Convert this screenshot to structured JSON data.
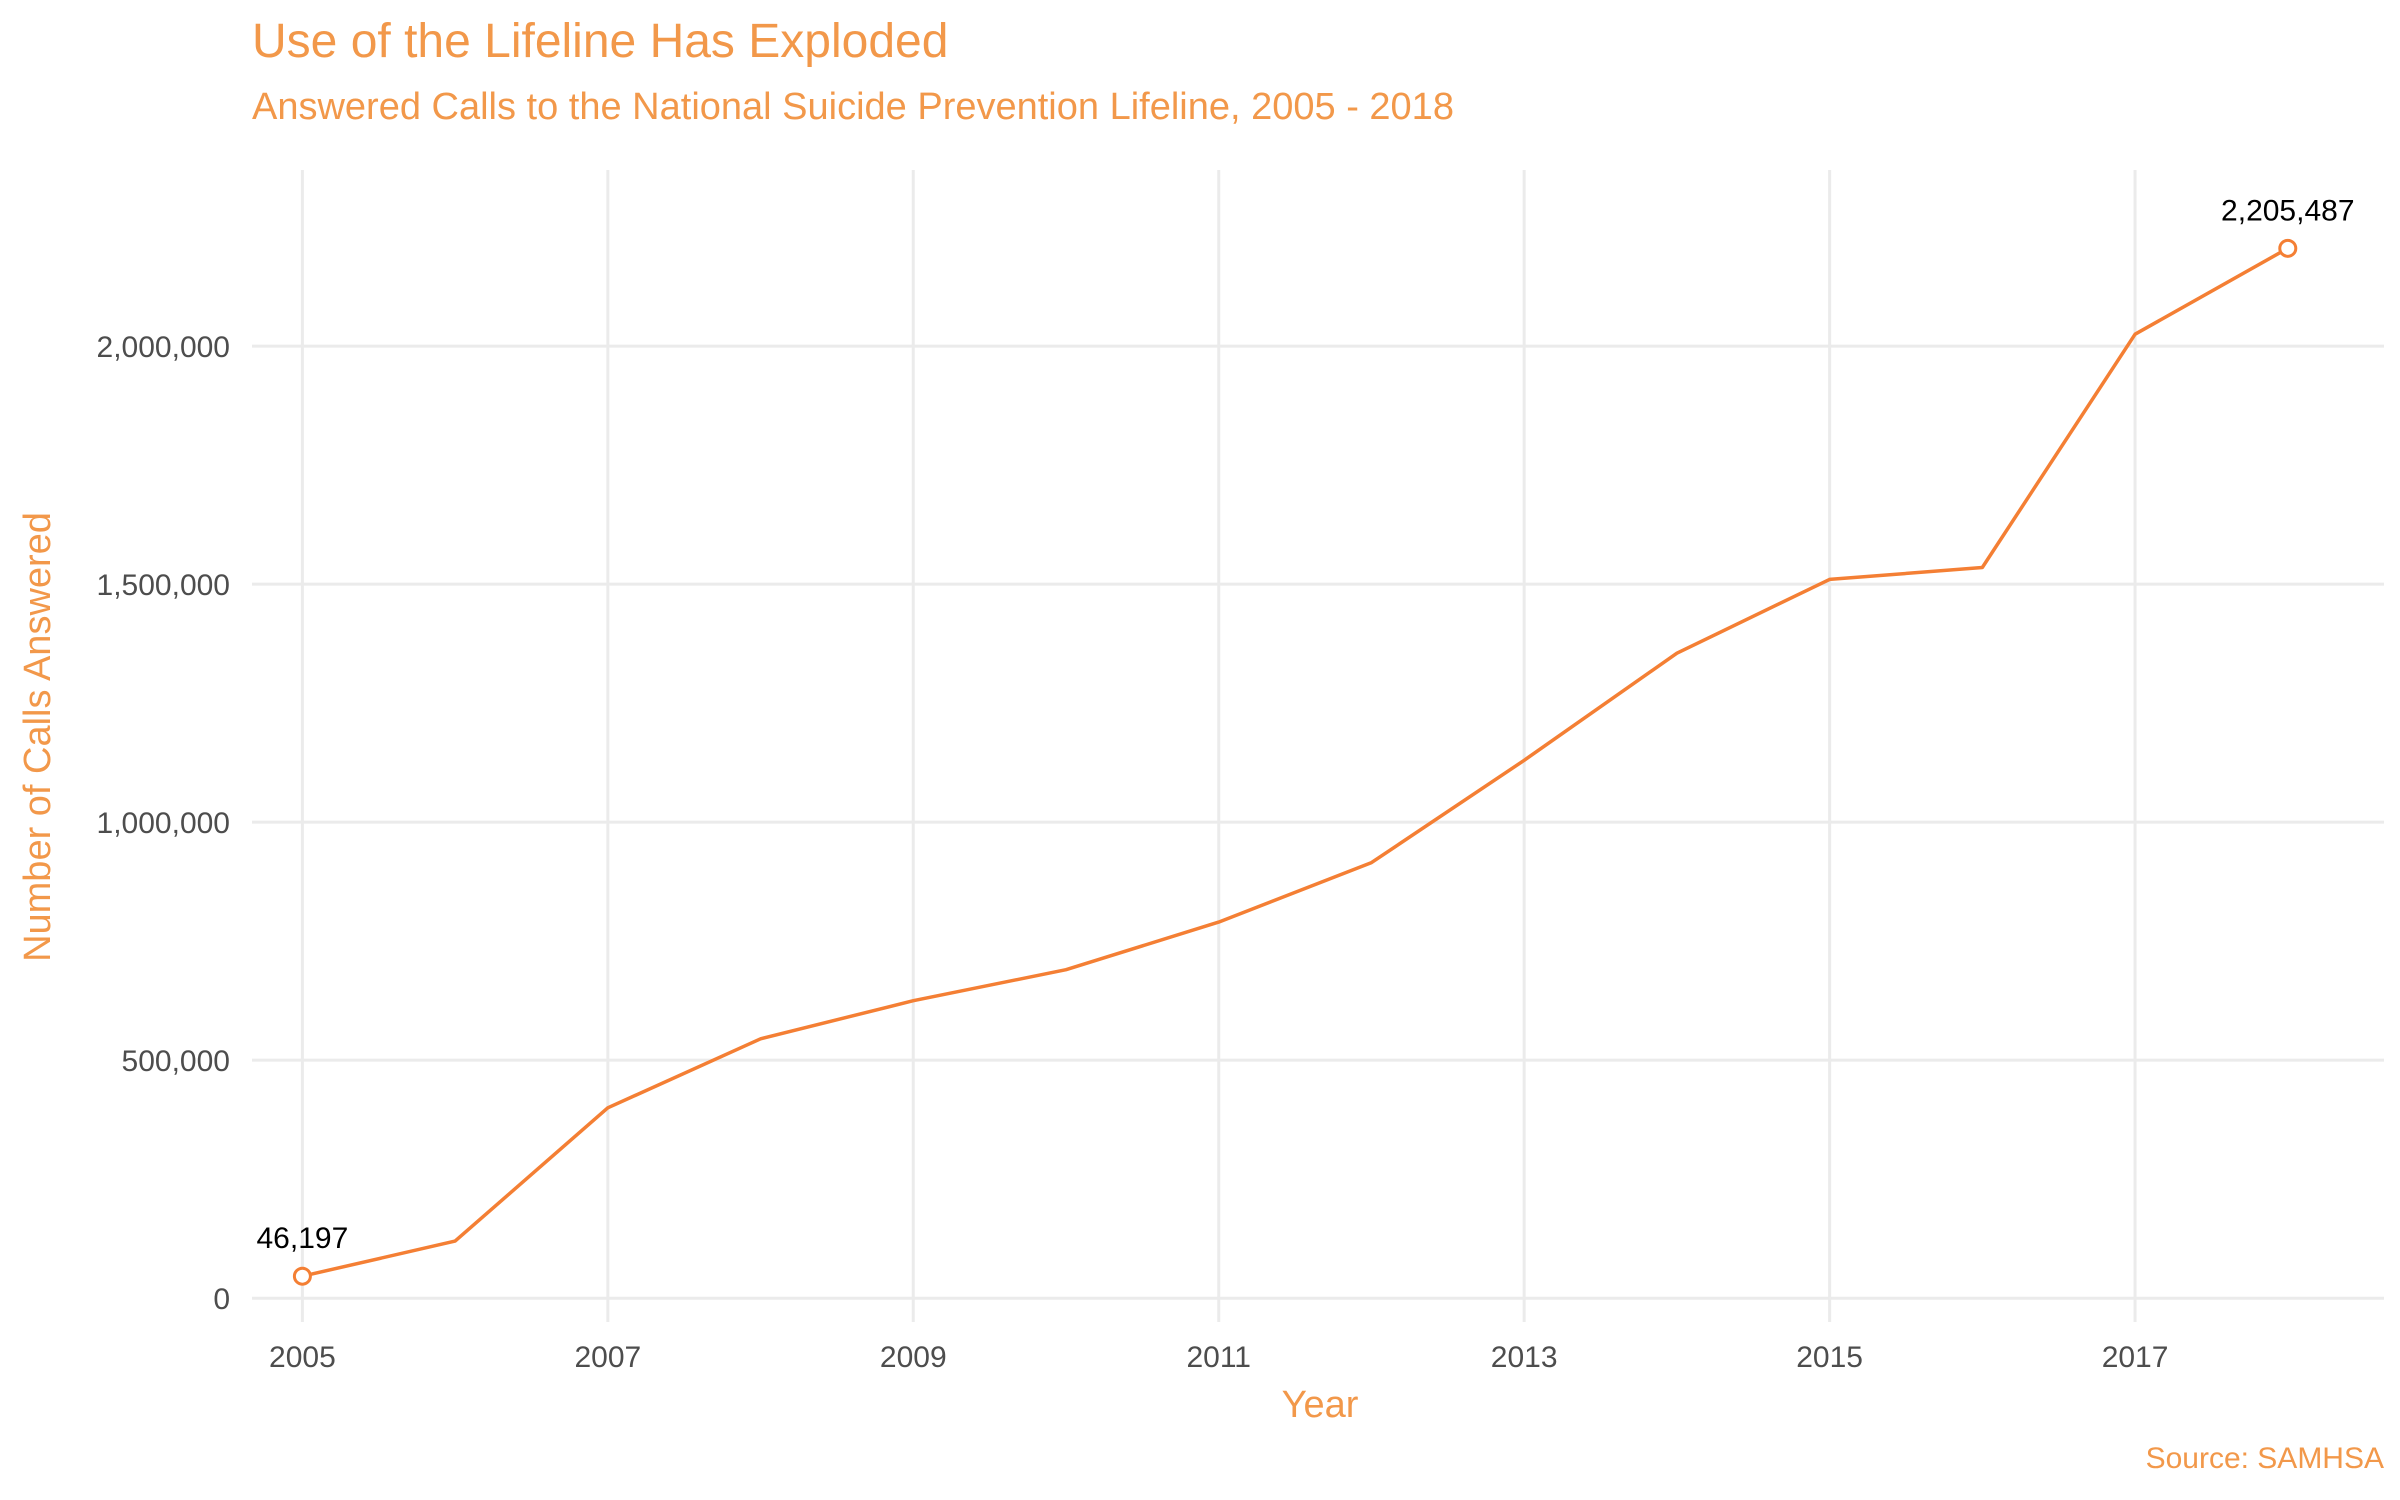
{
  "chart_data": {
    "type": "line",
    "title": "Use of the Lifeline Has Exploded",
    "subtitle": "Answered Calls to the National Suicide Prevention Lifeline, 2005 - 2018",
    "xlabel": "Year",
    "ylabel": "Number of Calls Answered",
    "caption": "Source: SAMHSA",
    "x": [
      2005,
      2006,
      2007,
      2008,
      2009,
      2010,
      2011,
      2012,
      2013,
      2014,
      2015,
      2016,
      2017,
      2018
    ],
    "series": [
      {
        "values": [
          46197,
          120000,
          400000,
          545000,
          625000,
          690000,
          790000,
          915000,
          1130000,
          1355000,
          1510000,
          1535000,
          2025000,
          2205487
        ]
      }
    ],
    "xlim": [
      2004.67,
      2018.63
    ],
    "ylim": [
      -50000,
      2370000
    ],
    "x_ticks": [
      2005,
      2007,
      2009,
      2011,
      2013,
      2015,
      2017
    ],
    "x_tick_labels": [
      "2005",
      "2007",
      "2009",
      "2011",
      "2013",
      "2015",
      "2017"
    ],
    "y_ticks": [
      0,
      500000,
      1000000,
      1500000,
      2000000
    ],
    "y_tick_labels": [
      "0",
      "500,000",
      "1,000,000",
      "1,500,000",
      "2,000,000"
    ],
    "annotations": [
      {
        "x": 2005,
        "y": 46197,
        "text": "46,197"
      },
      {
        "x": 2018,
        "y": 2205487,
        "text": "2,205,487"
      }
    ],
    "grid": true,
    "legend": "none",
    "colors": {
      "line": "#f47f34",
      "title": "#f2984a",
      "grid": "#ebebeb",
      "tick_text": "#4d4d4d",
      "annotation_text": "#000000"
    }
  }
}
